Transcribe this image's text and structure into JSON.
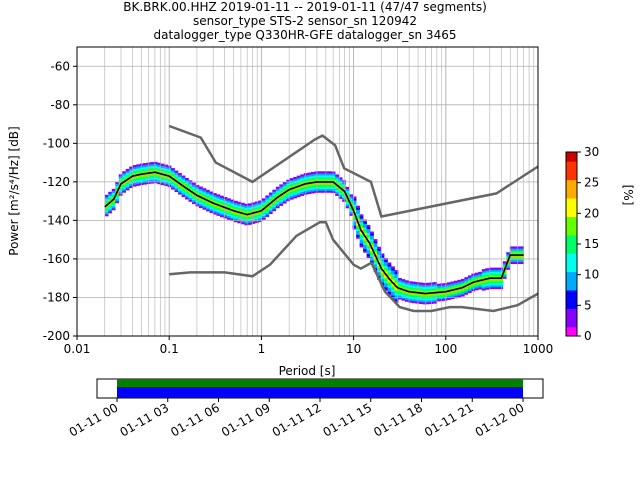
{
  "title": {
    "line1": "BK.BRK.00.HHZ   2019-01-11 -- 2019-01-11  (47/47 segments)",
    "line2": "sensor_type STS-2 sensor_sn 120942",
    "line3": "datalogger_type Q330HR-GFE datalogger_sn 3465"
  },
  "chart_data": {
    "type": "heatmap",
    "xlabel": "Period [s]",
    "ylabel": "Power [m²/s⁴/Hz] [dB]",
    "xscale": "log",
    "xlim": [
      0.01,
      1000
    ],
    "ylim": [
      -200,
      -50
    ],
    "xticks": [
      {
        "value": 0.01,
        "label": "0.01"
      },
      {
        "value": 0.1,
        "label": "0.1"
      },
      {
        "value": 1,
        "label": "1"
      },
      {
        "value": 10,
        "label": "10"
      },
      {
        "value": 100,
        "label": "100"
      },
      {
        "value": 1000,
        "label": "1000"
      }
    ],
    "yticks": [
      -60,
      -80,
      -100,
      -120,
      -140,
      -160,
      -180,
      -200
    ],
    "grid": true,
    "colorbar": {
      "label": "[%]",
      "range": [
        0,
        30
      ],
      "ticks": [
        0,
        5,
        10,
        15,
        20,
        25,
        30
      ],
      "colormap": [
        "#ff00ff",
        "#8800ff",
        "#0000ff",
        "#00aaff",
        "#00ffee",
        "#00ff66",
        "#66ff00",
        "#ffff00",
        "#ffaa00",
        "#ff3300",
        "#cc0000"
      ]
    },
    "series": [
      {
        "role": "high-noise-model",
        "color": "#666666",
        "points": [
          [
            0.1,
            -91
          ],
          [
            0.22,
            -97
          ],
          [
            0.32,
            -110
          ],
          [
            0.8,
            -120
          ],
          [
            3.8,
            -98
          ],
          [
            4.6,
            -96
          ],
          [
            6.3,
            -101
          ],
          [
            7.9,
            -113
          ],
          [
            15.4,
            -120
          ],
          [
            20,
            -138
          ],
          [
            354.8,
            -126
          ],
          [
            1000,
            -112
          ]
        ]
      },
      {
        "role": "low-noise-model",
        "color": "#666666",
        "points": [
          [
            0.1,
            -168
          ],
          [
            0.17,
            -167
          ],
          [
            0.4,
            -167
          ],
          [
            0.8,
            -169
          ],
          [
            1.24,
            -163
          ],
          [
            2.4,
            -148
          ],
          [
            4.3,
            -141
          ],
          [
            5,
            -141
          ],
          [
            6,
            -150
          ],
          [
            10,
            -163
          ],
          [
            12,
            -165
          ],
          [
            15.6,
            -162
          ],
          [
            21.9,
            -177
          ],
          [
            31.6,
            -185
          ],
          [
            45,
            -187
          ],
          [
            70,
            -187
          ],
          [
            110,
            -185
          ],
          [
            150,
            -185
          ],
          [
            328,
            -187
          ],
          [
            600,
            -184
          ],
          [
            1000,
            -178
          ]
        ]
      },
      {
        "role": "mode",
        "color": "#000000",
        "points": [
          [
            0.02,
            -133
          ],
          [
            0.025,
            -129
          ],
          [
            0.03,
            -121
          ],
          [
            0.04,
            -117
          ],
          [
            0.05,
            -116
          ],
          [
            0.07,
            -115
          ],
          [
            0.1,
            -117
          ],
          [
            0.15,
            -123
          ],
          [
            0.2,
            -127
          ],
          [
            0.3,
            -131
          ],
          [
            0.5,
            -135
          ],
          [
            0.7,
            -137
          ],
          [
            1,
            -135
          ],
          [
            1.5,
            -128
          ],
          [
            2,
            -124
          ],
          [
            3,
            -121
          ],
          [
            4,
            -120
          ],
          [
            6,
            -120
          ],
          [
            8,
            -125
          ],
          [
            10,
            -135
          ],
          [
            12,
            -145
          ],
          [
            15,
            -152
          ],
          [
            20,
            -165
          ],
          [
            25,
            -171
          ],
          [
            30,
            -175
          ],
          [
            40,
            -177
          ],
          [
            60,
            -178
          ],
          [
            100,
            -177
          ],
          [
            150,
            -175
          ],
          [
            200,
            -172
          ],
          [
            300,
            -170
          ],
          [
            400,
            -170
          ],
          [
            500,
            -158
          ],
          [
            700,
            -158
          ]
        ]
      }
    ],
    "density_band": {
      "description_none": "",
      "center_from": "mode",
      "max_percent": 30
    }
  },
  "timeline": {
    "ticks": [
      "01-11 00",
      "01-11 03",
      "01-11 06",
      "01-11 09",
      "01-11 12",
      "01-11 15",
      "01-11 18",
      "01-11 21",
      "01-12 00"
    ],
    "coverage_colors": {
      "upper": "#008000",
      "lower": "#0000ff"
    },
    "coverage_fraction": 1.0
  }
}
